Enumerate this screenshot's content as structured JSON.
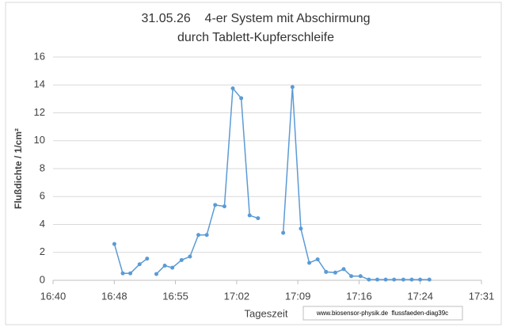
{
  "chart_data": {
    "type": "line",
    "title": [
      "31.05.26    4-er System mit Abschirmung",
      "durch Tablett-Kupferschleife"
    ],
    "x_label": "Tageszeit",
    "y_label": "Flußdichte / 1/cm²",
    "annotation": "www.biosensor-physik.de  flussfaeden-diag39c",
    "x": [
      1007.3,
      1008.3,
      1009.2,
      1010.3,
      1011.2,
      1011.7,
      1012.3,
      1013.3,
      1014.2,
      1015.3,
      1016.3,
      1017.3,
      1018.3,
      1019.3,
      1020.4,
      1021.4,
      1022.4,
      1023.4,
      1024.4,
      1025.4,
      1026.4,
      1027.4,
      1028.5,
      1029.5,
      1030.5,
      1031.5,
      1032.5,
      1033.6,
      1034.6,
      1035.5,
      1036.6,
      1037.6,
      1038.6,
      1039.6,
      1040.6,
      1041.7,
      1042.7,
      1043.7,
      1044.8
    ],
    "series": [
      {
        "name": "Flußdichte",
        "color": "#5b9bd5",
        "values": [
          2.6,
          0.5,
          0.5,
          1.15,
          1.55,
          null,
          0.45,
          1.05,
          0.9,
          1.45,
          1.7,
          3.25,
          3.25,
          5.4,
          5.3,
          13.75,
          13.05,
          4.65,
          4.45,
          null,
          null,
          3.4,
          13.85,
          3.7,
          1.25,
          1.5,
          0.6,
          0.55,
          0.8,
          0.3,
          0.3,
          0.05,
          0.05,
          0.05,
          0.05,
          0.05,
          0.05,
          0.05,
          0.05
        ]
      }
    ],
    "xlim": [
      1000,
      1051
    ],
    "xticks": [
      {
        "value": 1000,
        "label": "16:40"
      },
      {
        "value": 1007.29,
        "label": "16:48"
      },
      {
        "value": 1014.57,
        "label": "16:55"
      },
      {
        "value": 1021.86,
        "label": "17:02"
      },
      {
        "value": 1029.14,
        "label": "17:09"
      },
      {
        "value": 1036.43,
        "label": "17:16"
      },
      {
        "value": 1043.71,
        "label": "17:24"
      },
      {
        "value": 1051,
        "label": "17:31"
      }
    ],
    "ylim": [
      0,
      16
    ],
    "yticks": [
      0,
      2,
      4,
      6,
      8,
      10,
      12,
      14,
      16
    ],
    "grid": true
  }
}
